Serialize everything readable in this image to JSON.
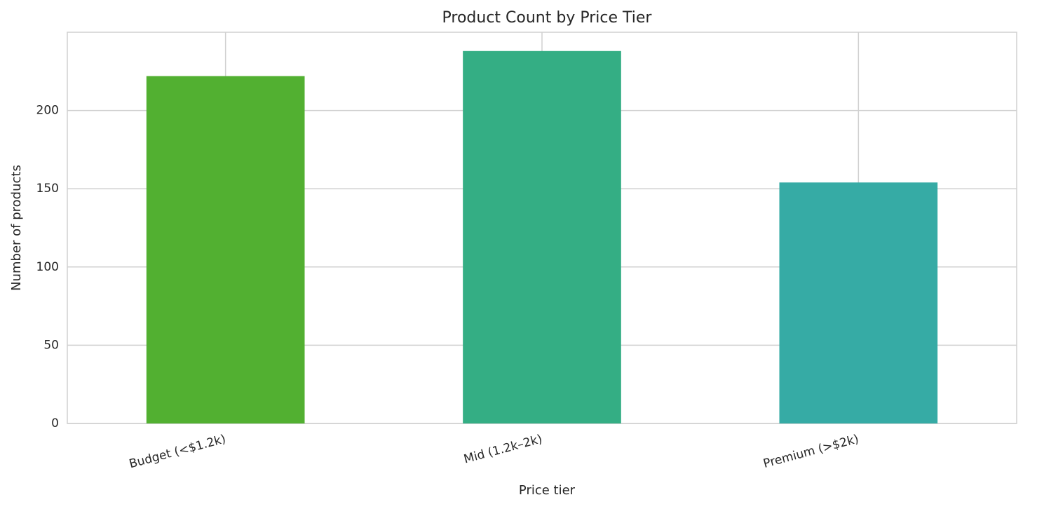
{
  "chart_data": {
    "type": "bar",
    "title": "Product Count by Price Tier",
    "x_label": "Price tier",
    "y_label": "Number of products",
    "categories": [
      "Budget (<$1.2k)",
      "Mid (1.2k–2k)",
      "Premium (>$2k)"
    ],
    "values": [
      222,
      238,
      154
    ],
    "colors": [
      "#52b031",
      "#34ae84",
      "#36aba5"
    ],
    "ylim": [
      0,
      250
    ],
    "yticks": [
      0,
      50,
      100,
      150,
      200
    ],
    "grid": true
  }
}
